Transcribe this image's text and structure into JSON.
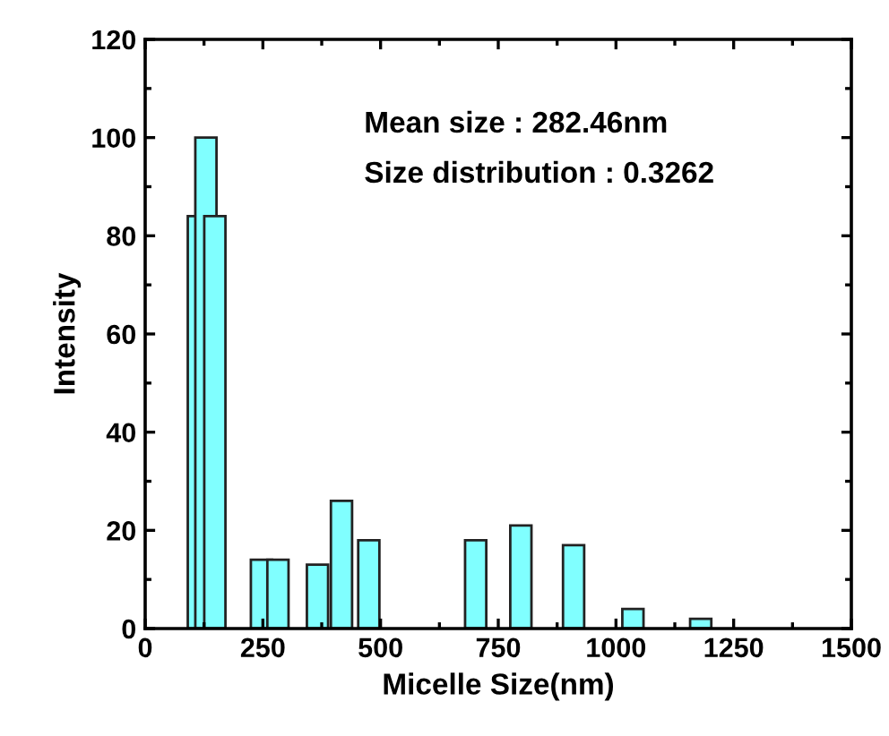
{
  "chart_data": {
    "type": "bar",
    "xlabel": "Micelle Size(nm)",
    "ylabel": "Intensity",
    "x": [
      113,
      129,
      148,
      247,
      282,
      366,
      417,
      475,
      702,
      798,
      910,
      1036,
      1180
    ],
    "series": [
      {
        "color": "#80ffff",
        "values": [
          84,
          100,
          84,
          14,
          14,
          13,
          26,
          18,
          18,
          21,
          17,
          4,
          2
        ]
      }
    ],
    "xlim": [
      0,
      1500
    ],
    "xticks": [
      0,
      250,
      500,
      750,
      1000,
      1250,
      1500
    ],
    "ylim": [
      0,
      120
    ],
    "yticks": [
      0,
      20,
      40,
      60,
      80,
      100,
      120
    ],
    "annotations": [
      "Mean size : 282.46nm",
      "Size distribution : 0.3262"
    ],
    "grid": false
  }
}
